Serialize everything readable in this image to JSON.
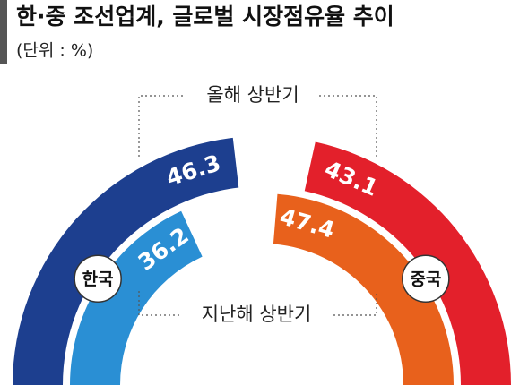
{
  "chart_data": {
    "type": "half-donut",
    "title": "한·중 조선업계, 글로벌 시장점유율 추이",
    "subtitle": "(단위 : %)",
    "categories": [
      "한국",
      "중국"
    ],
    "series": [
      {
        "name": "올해 상반기",
        "colors": [
          "#1d3f8f",
          "#e3202b"
        ],
        "values": [
          46.3,
          43.1
        ]
      },
      {
        "name": "지난해 상반기",
        "colors": [
          "#2a8fd4",
          "#e8611c"
        ],
        "values": [
          36.2,
          47.4
        ]
      }
    ]
  }
}
